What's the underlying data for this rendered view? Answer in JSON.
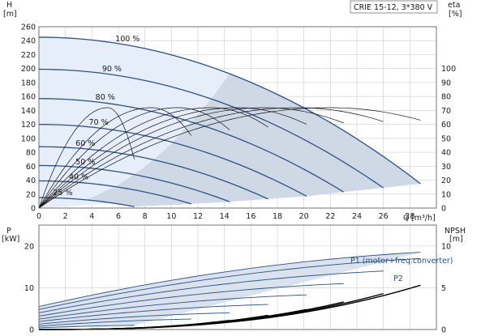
{
  "chart_data": [
    {
      "type": "line",
      "title": "CRIE 15-12, 3*380 V",
      "ylabel": "H",
      "yunit": "[m]",
      "y2label": "eta",
      "y2unit": "[%]",
      "xlabel": "Q",
      "xunit": "[m³/h]",
      "xlim": [
        0,
        30
      ],
      "ylim": [
        0,
        260
      ],
      "y2lim": [
        0,
        130
      ],
      "xticks": [
        "0",
        "2",
        "4",
        "6",
        "8",
        "10",
        "12",
        "14",
        "16",
        "18",
        "20",
        "22",
        "24",
        "26",
        "28"
      ],
      "yticks": [
        "0",
        "20",
        "40",
        "60",
        "80",
        "100",
        "120",
        "140",
        "160",
        "180",
        "200",
        "220",
        "240",
        "260"
      ],
      "y2ticks": [
        "0",
        "10",
        "20",
        "30",
        "40",
        "50",
        "60",
        "70",
        "80",
        "90",
        "100"
      ],
      "grid": true,
      "speed_curves": [
        {
          "label": "100 %",
          "h0": 245,
          "qmax": 28.8,
          "hend": 35
        },
        {
          "label": "90 %",
          "h0": 199,
          "qmax": 26.0,
          "hend": 29
        },
        {
          "label": "80 %",
          "h0": 157,
          "qmax": 23.0,
          "hend": 23
        },
        {
          "label": "70 %",
          "h0": 120,
          "qmax": 20.2,
          "hend": 17
        },
        {
          "label": "60 %",
          "h0": 88,
          "qmax": 17.3,
          "hend": 13
        },
        {
          "label": "50 %",
          "h0": 61,
          "qmax": 14.4,
          "hend": 9
        },
        {
          "label": "40 %",
          "h0": 39,
          "qmax": 11.5,
          "hend": 6
        },
        {
          "label": "25 %",
          "h0": 15,
          "qmax": 7.2,
          "hend": 2
        }
      ],
      "efficiency_curves": [
        {
          "peak_q": 5.2,
          "peak_eta": 72,
          "qmax": 7.2,
          "eta_end": 35
        },
        {
          "peak_q": 8.5,
          "peak_eta": 72,
          "qmax": 11.5,
          "eta_end": 52
        },
        {
          "peak_q": 10.5,
          "peak_eta": 72,
          "qmax": 14.4,
          "eta_end": 56
        },
        {
          "peak_q": 13.0,
          "peak_eta": 72,
          "qmax": 17.3,
          "eta_end": 58
        },
        {
          "peak_q": 15.0,
          "peak_eta": 72,
          "qmax": 20.2,
          "eta_end": 60
        },
        {
          "peak_q": 17.0,
          "peak_eta": 72,
          "qmax": 23.0,
          "eta_end": 61
        },
        {
          "peak_q": 19.5,
          "peak_eta": 72,
          "qmax": 26.0,
          "eta_end": 62
        },
        {
          "peak_q": 22.0,
          "peak_eta": 72,
          "qmax": 28.8,
          "eta_end": 63
        }
      ]
    },
    {
      "type": "line",
      "ylabel": "P",
      "yunit": "[kW]",
      "y2label": "NPSH",
      "y2unit": "[m]",
      "xlim": [
        0,
        30
      ],
      "ylim": [
        0,
        25
      ],
      "y2lim": [
        0,
        12.5
      ],
      "yticks": [
        "0",
        "10",
        "20"
      ],
      "y2ticks": [
        "0",
        "5",
        "10"
      ],
      "grid": true,
      "series_labels": [
        "P1 (motor+freq.converter)",
        "P2"
      ],
      "power_curves": [
        {
          "p0": 5.5,
          "qmax": 28.8,
          "pend": 18.5
        },
        {
          "p0": 4.8,
          "qmax": 28.8,
          "pend": 17.0
        },
        {
          "p0": 4.0,
          "qmax": 26.0,
          "pend": 14.0
        },
        {
          "p0": 3.2,
          "qmax": 23.0,
          "pend": 11.0
        },
        {
          "p0": 2.5,
          "qmax": 20.2,
          "pend": 8.3
        },
        {
          "p0": 1.9,
          "qmax": 17.3,
          "pend": 6.0
        },
        {
          "p0": 1.3,
          "qmax": 14.4,
          "pend": 4.0
        },
        {
          "p0": 0.8,
          "qmax": 11.5,
          "pend": 2.5
        },
        {
          "p0": 0.4,
          "qmax": 7.2,
          "pend": 1.0
        }
      ],
      "npsh_curves": [
        {
          "qmax": 28.8,
          "nend": 5.3
        },
        {
          "qmax": 26.0,
          "nend": 4.3
        },
        {
          "qmax": 23.0,
          "nend": 3.3
        },
        {
          "qmax": 20.2,
          "nend": 2.4
        },
        {
          "qmax": 17.3,
          "nend": 1.7
        },
        {
          "qmax": 14.4,
          "nend": 1.1
        }
      ]
    }
  ]
}
